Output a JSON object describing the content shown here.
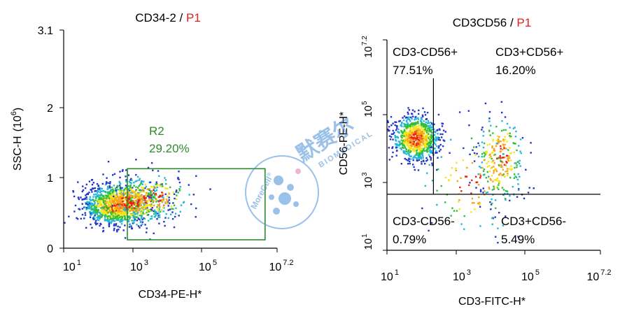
{
  "chart_data": [
    {
      "type": "scatter",
      "plot_style": "density-pseudocolor",
      "title": "CD34-2",
      "title_separator": " / ",
      "title_gate": "P1",
      "xlabel": "CD34-PE-H*",
      "ylabel": "SSC-H",
      "ylabel_unit_base": "(10",
      "ylabel_unit_exp": "6",
      "ylabel_unit_close": ")",
      "x_scale": "log",
      "xlim": [
        1,
        7.2
      ],
      "x_ticks": [
        {
          "value": 1,
          "base": "10",
          "exp": "1"
        },
        {
          "value": 3,
          "base": "10",
          "exp": "3"
        },
        {
          "value": 5,
          "base": "10",
          "exp": "5"
        },
        {
          "value": 7.2,
          "base": "10",
          "exp": "7.2"
        }
      ],
      "y_scale": "linear",
      "ylim": [
        0,
        3.1
      ],
      "y_ticks": [
        {
          "value": 0,
          "label": "0"
        },
        {
          "value": 1,
          "label": "1"
        },
        {
          "value": 2,
          "label": "2"
        },
        {
          "value": 3.1,
          "label": "3.1"
        }
      ],
      "clusters": [
        {
          "cx": 2.5,
          "cy": 0.6,
          "sx": 0.45,
          "sy": 0.13,
          "n": 900
        },
        {
          "cx": 2.9,
          "cy": 0.65,
          "sx": 0.55,
          "sy": 0.17,
          "n": 600
        },
        {
          "cx": 3.6,
          "cy": 0.72,
          "sx": 0.55,
          "sy": 0.16,
          "n": 180
        }
      ],
      "gates": [
        {
          "name": "R2",
          "percent": "29.20%",
          "x": [
            2.85,
            6.85
          ],
          "y": [
            0.12,
            1.13
          ],
          "color": "#2e8b2e"
        }
      ]
    },
    {
      "type": "scatter",
      "plot_style": "density-pseudocolor",
      "title": "CD3CD56",
      "title_separator": " / ",
      "title_gate": "P1",
      "xlabel": "CD3-FITC-H*",
      "ylabel": "CD56-PE-H*",
      "x_scale": "log",
      "xlim": [
        1,
        7.2
      ],
      "x_ticks": [
        {
          "value": 1,
          "base": "10",
          "exp": "1"
        },
        {
          "value": 3,
          "base": "10",
          "exp": "3"
        },
        {
          "value": 5,
          "base": "10",
          "exp": "5"
        },
        {
          "value": 7.2,
          "base": "10",
          "exp": "7.2"
        }
      ],
      "y_scale": "log",
      "ylim": [
        1,
        7.2
      ],
      "y_ticks": [
        {
          "value": 1,
          "base": "10",
          "exp": "1"
        },
        {
          "value": 3,
          "base": "10",
          "exp": "3"
        },
        {
          "value": 5,
          "base": "10",
          "exp": "5"
        },
        {
          "value": 7.2,
          "base": "10",
          "exp": "7.2"
        }
      ],
      "quadrant_divider": {
        "x": 2.35,
        "y": 2.65
      },
      "clusters": [
        {
          "cx": 1.85,
          "cy": 4.3,
          "sx": 0.32,
          "sy": 0.32,
          "n": 900
        },
        {
          "cx": 4.3,
          "cy": 3.7,
          "sx": 0.35,
          "sy": 0.65,
          "n": 260
        },
        {
          "cx": 3.5,
          "cy": 3.0,
          "sx": 0.7,
          "sy": 0.8,
          "n": 120
        }
      ],
      "quadrants": [
        {
          "name": "CD3-CD56+",
          "percent": "77.51%",
          "position": "top-left"
        },
        {
          "name": "CD3+CD56+",
          "percent": "16.20%",
          "position": "top-right"
        },
        {
          "name": "CD3-CD56-",
          "percent": "0.79%",
          "position": "bottom-left"
        },
        {
          "name": "CD3+CD56-",
          "percent": "5.49%",
          "position": "bottom-right"
        }
      ]
    }
  ],
  "watermark": {
    "brand_latin": "MoreCell",
    "brand_registered": "®",
    "brand_cn": "默赛尔",
    "sub_text": "BIOMEDICAL",
    "color": "#4a8fd6"
  },
  "colors": {
    "axis": "#000000",
    "text": "#000000",
    "gate_accent": "#e02020",
    "gate_box": "#2e8b2e",
    "quadrant_line": "#000000"
  }
}
